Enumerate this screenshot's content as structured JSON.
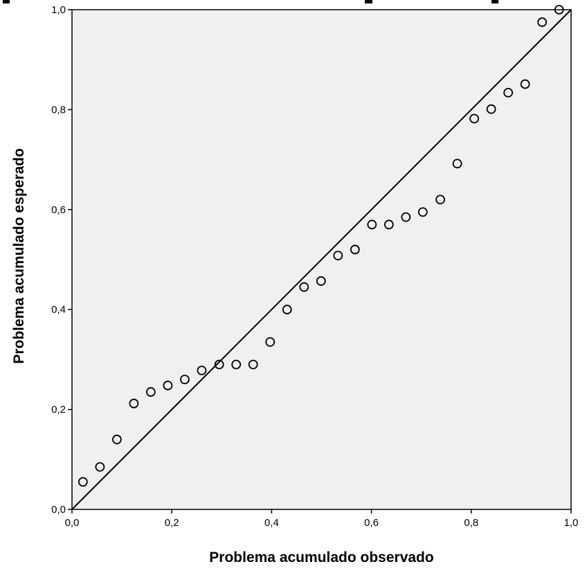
{
  "chart_data": {
    "type": "scatter",
    "title": "",
    "xlabel": "Problema acumulado observado",
    "ylabel": "Problema acumulado esperado",
    "xlim": [
      0.0,
      1.0
    ],
    "ylim": [
      0.0,
      1.0
    ],
    "x_ticks": [
      "0,0",
      "0,2",
      "0,4",
      "0,6",
      "0,8",
      "1,0"
    ],
    "y_ticks": [
      "0,0",
      "0,2",
      "0,4",
      "0,6",
      "0,8",
      "1,0"
    ],
    "reference_line": {
      "from": [
        0.0,
        0.0
      ],
      "to": [
        1.0,
        1.0
      ]
    },
    "grid": false,
    "legend": "none",
    "background_color": "#f0f0f0",
    "marker": "open-circle",
    "series": [
      {
        "x": [
          0.022,
          0.056,
          0.09,
          0.124,
          0.158,
          0.192,
          0.226,
          0.26,
          0.295,
          0.329,
          0.363,
          0.397,
          0.431,
          0.465,
          0.499,
          0.533,
          0.567,
          0.601,
          0.635,
          0.669,
          0.703,
          0.738,
          0.772,
          0.806,
          0.84,
          0.874,
          0.908,
          0.942,
          0.976
        ],
        "y": [
          0.055,
          0.085,
          0.14,
          0.212,
          0.235,
          0.248,
          0.26,
          0.278,
          0.29,
          0.29,
          0.29,
          0.335,
          0.4,
          0.445,
          0.457,
          0.508,
          0.52,
          0.57,
          0.57,
          0.585,
          0.595,
          0.62,
          0.692,
          0.782,
          0.801,
          0.834,
          0.851,
          0.975,
          1.0
        ]
      }
    ]
  }
}
